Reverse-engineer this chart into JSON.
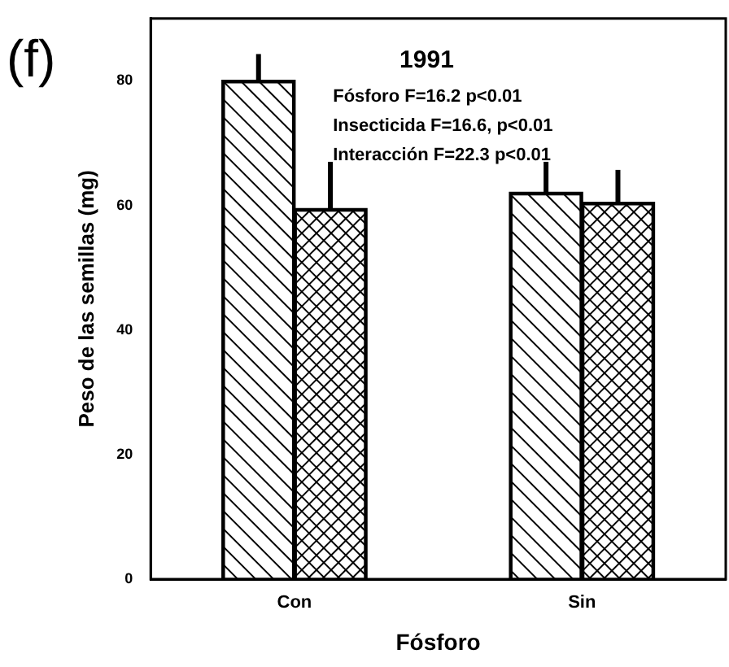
{
  "chart_data": {
    "type": "bar",
    "title": "1991",
    "xlabel": "Fósforo",
    "ylabel": "Peso de las semillas (mg)",
    "annotations": [
      "(f)",
      "Fósforo F=16.2 p<0.01",
      "Insecticida F=16.6, p<0.01",
      "Interacción F=22.3 p<0.01"
    ],
    "categories": [
      "Con",
      "Sin"
    ],
    "series": [
      {
        "color": "#000000",
        "values": [
          80,
          62
        ],
        "errors": [
          [
            80,
            84.3
          ],
          [
            62,
            67
          ]
        ]
      },
      {
        "color": "#000000",
        "values": [
          59.4,
          60.4
        ],
        "errors": [
          [
            59.4,
            67
          ],
          [
            60.4,
            65.7
          ]
        ]
      }
    ],
    "ylim": [
      0,
      90
    ],
    "yticks": [
      0,
      20,
      40,
      60,
      80
    ],
    "grid": false,
    "legend": false
  }
}
